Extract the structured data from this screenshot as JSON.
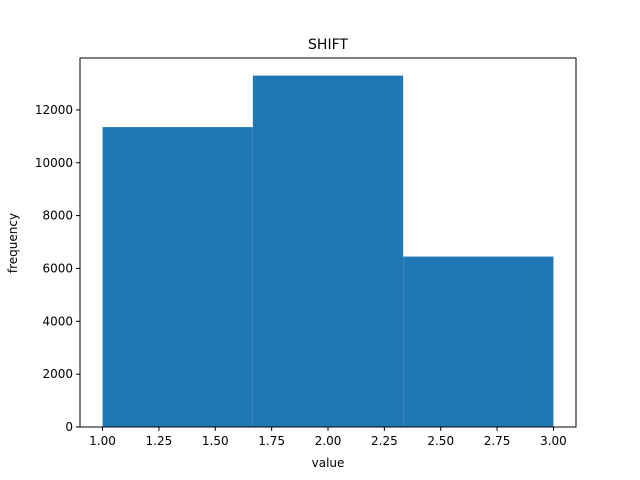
{
  "chart_data": {
    "type": "bar",
    "title": "SHIFT",
    "xlabel": "value",
    "ylabel": "frequency",
    "bins": [
      {
        "x_start": 1.0,
        "x_end": 1.6667,
        "value": 11350
      },
      {
        "x_start": 1.6667,
        "x_end": 2.3333,
        "value": 13300
      },
      {
        "x_start": 2.3333,
        "x_end": 3.0,
        "value": 6450
      }
    ],
    "xlim": [
      0.9,
      3.1
    ],
    "ylim": [
      0,
      13965
    ],
    "x_ticks": [
      1.0,
      1.25,
      1.5,
      1.75,
      2.0,
      2.25,
      2.5,
      2.75,
      3.0
    ],
    "x_tick_labels": [
      "1.00",
      "1.25",
      "1.50",
      "1.75",
      "2.00",
      "2.25",
      "2.50",
      "2.75",
      "3.00"
    ],
    "y_ticks": [
      0,
      2000,
      4000,
      6000,
      8000,
      10000,
      12000
    ],
    "y_tick_labels": [
      "0",
      "2000",
      "4000",
      "6000",
      "8000",
      "10000",
      "12000"
    ],
    "bar_color": "#1f77b4",
    "grid": false,
    "legend": "none"
  }
}
